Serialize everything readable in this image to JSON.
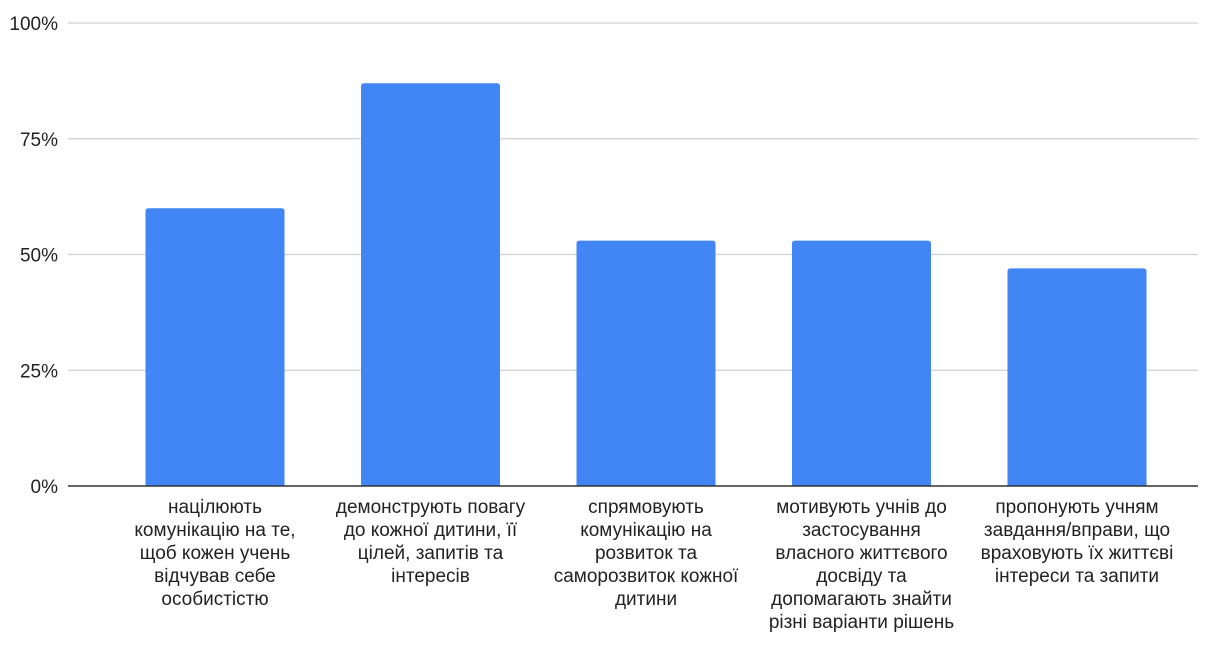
{
  "chart_data": {
    "type": "bar",
    "title": "",
    "xlabel": "",
    "ylabel": "",
    "ylim": [
      0,
      100
    ],
    "y_ticks": [
      "0%",
      "25%",
      "50%",
      "75%",
      "100%"
    ],
    "y_tick_values": [
      0,
      25,
      50,
      75,
      100
    ],
    "grid": true,
    "legend": "none",
    "bar_color": "#4285f4",
    "categories": [
      [
        "націлюють",
        "комунікацію на те,",
        "щоб кожен учень",
        "відчував себе",
        "особистістю"
      ],
      [
        "демонструють повагу",
        "до кожної дитини, її",
        "цілей, запитів та",
        "інтересів"
      ],
      [
        "спрямовують",
        "комунікацію на",
        "розвиток та",
        "саморозвиток кожної",
        "дитини"
      ],
      [
        "мотивують учнів до",
        "застосування",
        "власного життєвого",
        "досвіду та",
        "допомагають знайти",
        "різні варіанти рішень"
      ],
      [
        "пропонують учням",
        "завдання/вправи, що",
        "враховують їх життєві",
        "інтереси та запити"
      ]
    ],
    "values": [
      60,
      87,
      53,
      53,
      47
    ]
  }
}
